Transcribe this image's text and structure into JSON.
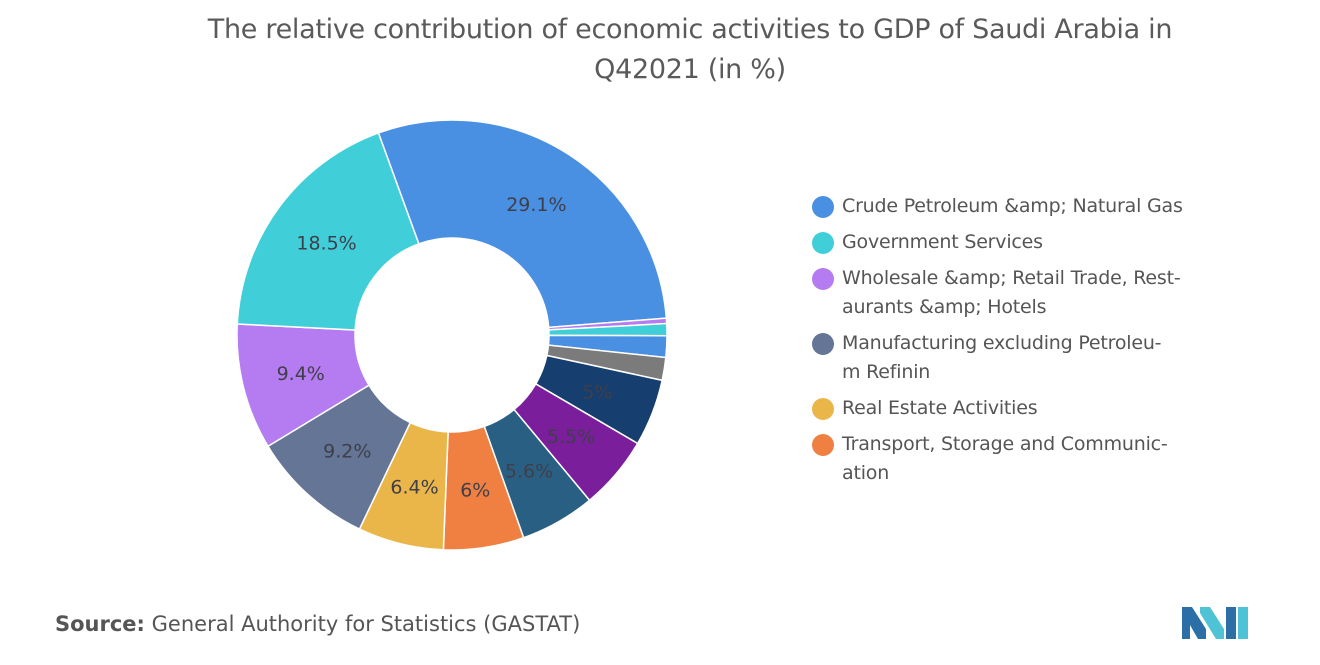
{
  "chart_data": {
    "type": "pie",
    "title": "The relative contribution of economic activities to GDP of Saudi Arabia in Q42021 (in %)",
    "title_lines": [
      "The relative contribution of economic activities to GDP of Saudi Arabia in",
      "Q42021 (in %)"
    ],
    "legend_position": "right",
    "slices": [
      {
        "label": "Crude Petroleum &amp; Natural Gas",
        "value": 29.1,
        "display": "29.1%",
        "color": "#4a90e2"
      },
      {
        "label": "",
        "value": 0.4,
        "display": "",
        "color": "#b57bf0"
      },
      {
        "label": "",
        "value": 0.9,
        "display": "",
        "color": "#40cfd9"
      },
      {
        "label": "",
        "value": 1.6,
        "display": "",
        "color": "#4a90e2"
      },
      {
        "label": "",
        "value": 1.7,
        "display": "",
        "color": "#7b7b7b"
      },
      {
        "label": "",
        "value": 5.0,
        "display": "5%",
        "color": "#163e6f"
      },
      {
        "label": "",
        "value": 5.5,
        "display": "5.5%",
        "color": "#7b1e9c"
      },
      {
        "label": "",
        "value": 5.6,
        "display": "5.6%",
        "color": "#2a5f84"
      },
      {
        "label": "Transport, Storage and Communication",
        "value": 6.0,
        "display": "6%",
        "color": "#f08041"
      },
      {
        "label": "Real Estate Activities",
        "value": 6.4,
        "display": "6.4%",
        "color": "#ebb649"
      },
      {
        "label": "Manufacturing excluding Petroleum Refinin",
        "value": 9.2,
        "display": "9.2%",
        "color": "#647596"
      },
      {
        "label": "Wholesale &amp; Retail Trade, Restaurants &amp; Hotels",
        "value": 9.4,
        "display": "9.4%",
        "color": "#b57bf0"
      },
      {
        "label": "Government Services",
        "value": 18.5,
        "display": "18.5%",
        "color": "#40cfd9"
      }
    ]
  },
  "legend": [
    {
      "lines": [
        "Crude Petroleum &amp; Natural Gas"
      ],
      "color": "#4a90e2"
    },
    {
      "lines": [
        "Government Services"
      ],
      "color": "#40cfd9"
    },
    {
      "lines": [
        "Wholesale &amp; Retail Trade, Rest-",
        "aurants &amp; Hotels"
      ],
      "color": "#b57bf0"
    },
    {
      "lines": [
        "Manufacturing excluding Petroleu-",
        "m Refinin"
      ],
      "color": "#647596"
    },
    {
      "lines": [
        "Real Estate Activities"
      ],
      "color": "#ebb649"
    },
    {
      "lines": [
        "Transport, Storage and Communic-",
        "ation"
      ],
      "color": "#f08041"
    }
  ],
  "source": {
    "key": "Source:",
    "text": "General Authority for Statistics (GASTAT)"
  },
  "logo": {
    "icon": "mordor-intelligence-logo-icon",
    "colors": [
      "#2c6fa6",
      "#4fc3d6"
    ]
  }
}
